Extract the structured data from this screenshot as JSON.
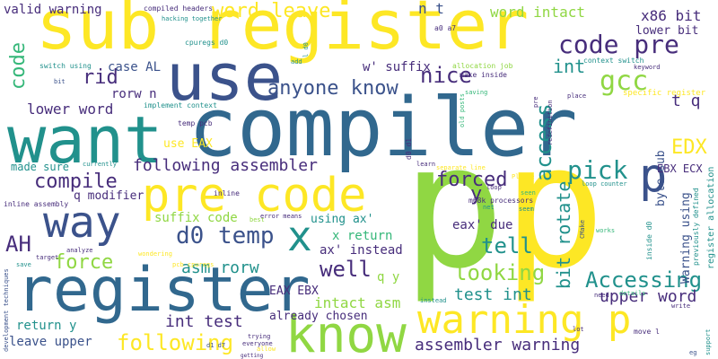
{
  "palette": {
    "c1": "#3b528b",
    "c2": "#31688e",
    "c3": "#21918c",
    "c4": "#35b779",
    "c5": "#90d743",
    "c6": "#fde725",
    "c7": "#472d7b",
    "c8": "#440154",
    "background": "#ffffff"
  },
  "words": [
    {
      "text": "compiler",
      "color": "c2"
    },
    {
      "text": "p",
      "color": "c5"
    },
    {
      "text": "p",
      "color": "c6"
    },
    {
      "text": "sub register",
      "color": "c6"
    },
    {
      "text": "want",
      "color": "c3"
    },
    {
      "text": "register",
      "color": "c2"
    },
    {
      "text": "use",
      "color": "c1"
    },
    {
      "text": "know",
      "color": "c5"
    },
    {
      "text": "pre code",
      "color": "c6"
    },
    {
      "text": "way",
      "color": "c1"
    },
    {
      "text": "warning p",
      "color": "c6"
    },
    {
      "text": "p",
      "color": "c1"
    },
    {
      "text": "x",
      "color": "c3"
    },
    {
      "text": "code pre",
      "color": "c7"
    },
    {
      "text": "gcc",
      "color": "c5"
    },
    {
      "text": "pick",
      "color": "c3"
    },
    {
      "text": "EDX",
      "color": "c6"
    },
    {
      "text": "access",
      "color": "c3"
    },
    {
      "text": "word leave",
      "color": "c6"
    },
    {
      "text": "anyone know",
      "color": "c1"
    },
    {
      "text": "compile",
      "color": "c7"
    },
    {
      "text": "forced",
      "color": "c7"
    },
    {
      "text": "d0 temp",
      "color": "c1"
    },
    {
      "text": "AH",
      "color": "c7"
    },
    {
      "text": "force",
      "color": "c5"
    },
    {
      "text": "well",
      "color": "c7"
    },
    {
      "text": "tell",
      "color": "c3"
    },
    {
      "text": "looking",
      "color": "c5"
    },
    {
      "text": "Accessing",
      "color": "c3"
    },
    {
      "text": "following",
      "color": "c6"
    },
    {
      "text": "bit rotate",
      "color": "c3"
    },
    {
      "text": "nice",
      "color": "c7"
    },
    {
      "text": "rid",
      "color": "c7"
    },
    {
      "text": "int",
      "color": "c3"
    },
    {
      "text": "code",
      "color": "c4"
    },
    {
      "text": "y",
      "color": "c7"
    },
    {
      "text": "test int",
      "color": "c3"
    },
    {
      "text": "following assembler",
      "color": "c7"
    },
    {
      "text": "assembler warning",
      "color": "c7"
    },
    {
      "text": "upper word",
      "color": "c7"
    },
    {
      "text": "int test",
      "color": "c7"
    },
    {
      "text": "asm rorw",
      "color": "c3"
    },
    {
      "text": "intact asm",
      "color": "c5"
    },
    {
      "text": "lower word",
      "color": "c7"
    },
    {
      "text": "x86 bit",
      "color": "c7"
    },
    {
      "text": "t q",
      "color": "c7"
    },
    {
      "text": "word intact",
      "color": "c5"
    },
    {
      "text": "n t",
      "color": "c1"
    },
    {
      "text": "valid warning",
      "color": "c7"
    },
    {
      "text": "case AL",
      "color": "c1"
    },
    {
      "text": "rorw n",
      "color": "c7"
    },
    {
      "text": "suffix code",
      "color": "c5"
    },
    {
      "text": "return y",
      "color": "c3"
    },
    {
      "text": "leave upper",
      "color": "c1"
    },
    {
      "text": "byte sub",
      "color": "c1"
    },
    {
      "text": "Warning using",
      "color": "c1"
    },
    {
      "text": "q y",
      "color": "c5"
    },
    {
      "text": "x return",
      "color": "c4"
    },
    {
      "text": "ax' instead",
      "color": "c7"
    },
    {
      "text": "using ax'",
      "color": "c3"
    },
    {
      "text": "eax' due",
      "color": "c7"
    },
    {
      "text": "w' suffix",
      "color": "c7"
    },
    {
      "text": "use EAX",
      "color": "c6"
    },
    {
      "text": "made sure",
      "color": "c3"
    },
    {
      "text": "q modifier",
      "color": "c7"
    },
    {
      "text": "EAX EBX",
      "color": "c7"
    },
    {
      "text": "already chosen",
      "color": "c7"
    },
    {
      "text": "lower bit",
      "color": "c7"
    },
    {
      "text": "EBX ECX",
      "color": "c7"
    },
    {
      "text": "compiled headers",
      "color": "c7"
    },
    {
      "text": "cpuregs d0",
      "color": "c3"
    },
    {
      "text": "hacking together",
      "color": "c3"
    },
    {
      "text": "switch using",
      "color": "c3"
    },
    {
      "text": "a0 a7",
      "color": "c7"
    },
    {
      "text": "allocation job",
      "color": "c5"
    },
    {
      "text": "make inside",
      "color": "c7"
    },
    {
      "text": "context switch",
      "color": "c3"
    },
    {
      "text": "keyword",
      "color": "c7"
    },
    {
      "text": "specific register",
      "color": "c6"
    },
    {
      "text": "implement context",
      "color": "c3"
    },
    {
      "text": "temp pcb",
      "color": "c7"
    },
    {
      "text": "d0 d1",
      "color": "c7"
    },
    {
      "text": "old posts",
      "color": "c4"
    },
    {
      "text": "redefinition",
      "color": "c7"
    },
    {
      "text": "place",
      "color": "c7"
    },
    {
      "text": "register allocation",
      "color": "c3"
    },
    {
      "text": "previously defined",
      "color": "c3"
    },
    {
      "text": "inside d0",
      "color": "c3"
    },
    {
      "text": "loop counter",
      "color": "c3"
    },
    {
      "text": "separate line",
      "color": "c6"
    },
    {
      "text": "learn",
      "color": "c7"
    },
    {
      "text": "Please",
      "color": "c6"
    },
    {
      "text": "m68k processors",
      "color": "c7"
    },
    {
      "text": "loop",
      "color": "c7"
    },
    {
      "text": "net",
      "color": "c3"
    },
    {
      "text": "seem",
      "color": "c3"
    },
    {
      "text": "seen",
      "color": "c4"
    },
    {
      "text": "works",
      "color": "c4"
    },
    {
      "text": "CMake",
      "color": "c1"
    },
    {
      "text": "inline",
      "color": "c7"
    },
    {
      "text": "inline assembly",
      "color": "c7"
    },
    {
      "text": "best",
      "color": "c5"
    },
    {
      "text": "error means",
      "color": "c7"
    },
    {
      "text": "analyze",
      "color": "c7"
    },
    {
      "text": "target",
      "color": "c7"
    },
    {
      "text": "save",
      "color": "c3"
    },
    {
      "text": "wondering",
      "color": "c6"
    },
    {
      "text": "pcb cpuregs",
      "color": "c6"
    },
    {
      "text": "development techniques",
      "color": "c1"
    },
    {
      "text": "trying",
      "color": "c7"
    },
    {
      "text": "everyone",
      "color": "c7"
    },
    {
      "text": "allow",
      "color": "c6"
    },
    {
      "text": "getting",
      "color": "c7"
    },
    {
      "text": "d1 d7",
      "color": "c1"
    },
    {
      "text": "instead",
      "color": "c3"
    },
    {
      "text": "lot",
      "color": "c7"
    },
    {
      "text": "need",
      "color": "c7"
    },
    {
      "text": "details",
      "color": "c4"
    },
    {
      "text": "write",
      "color": "c7"
    },
    {
      "text": "move l",
      "color": "c7"
    },
    {
      "text": "eg",
      "color": "c1"
    },
    {
      "text": "support",
      "color": "c3"
    },
    {
      "text": "currently",
      "color": "c3"
    },
    {
      "text": "add",
      "color": "c3"
    },
    {
      "text": "l d0",
      "color": "c3"
    },
    {
      "text": "bit",
      "color": "c1"
    },
    {
      "text": "saving",
      "color": "c4"
    },
    {
      "text": "pre",
      "color": "c7"
    }
  ]
}
